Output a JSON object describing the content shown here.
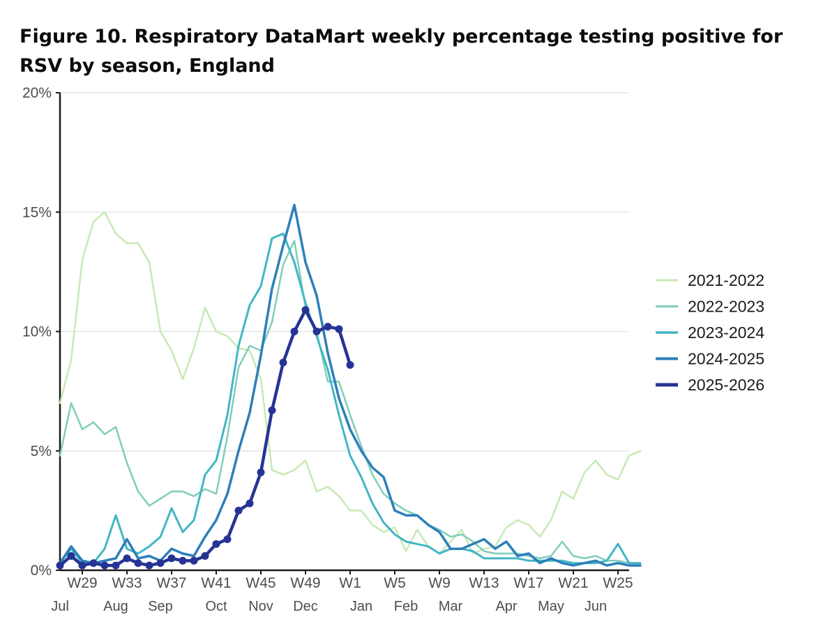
{
  "chart_data": {
    "type": "line",
    "title": "Figure 10. Respiratory DataMart weekly percentage testing positive for RSV by season, England",
    "xlabel": "",
    "ylabel": "",
    "ylim": [
      0,
      20
    ],
    "y_ticks": [
      0,
      5,
      10,
      15,
      20
    ],
    "y_tick_labels": [
      "0%",
      "5%",
      "10%",
      "15%",
      "20%"
    ],
    "x_range": [
      0,
      50
    ],
    "x_tick_labels": [
      "W29",
      "W33",
      "W37",
      "W41",
      "W45",
      "W49",
      "W1",
      "W5",
      "W9",
      "W13",
      "W17",
      "W21",
      "W25"
    ],
    "x_tick_positions": [
      2,
      6,
      10,
      14,
      18,
      22,
      26,
      30,
      34,
      38,
      42,
      46,
      50
    ],
    "months": [
      "Jul",
      "Aug",
      "Sep",
      "Oct",
      "Nov",
      "Dec",
      "Jan",
      "Feb",
      "Mar",
      "Apr",
      "May",
      "Jun"
    ],
    "month_positions": [
      0,
      5,
      9,
      14,
      18,
      22,
      27,
      31,
      35,
      40,
      44,
      48
    ],
    "grid": true,
    "legend_position": "right",
    "series": [
      {
        "name": "2021-2022",
        "color": "#c7e9b4",
        "width": 2.5,
        "markers": false,
        "values": [
          7.0,
          8.8,
          13.0,
          14.6,
          15.0,
          14.1,
          13.7,
          13.7,
          12.9,
          10.0,
          9.2,
          8.0,
          9.3,
          11.0,
          10.0,
          9.8,
          9.3,
          9.2,
          8.0,
          4.2,
          4.0,
          4.2,
          4.6,
          3.3,
          3.5,
          3.1,
          2.5,
          2.5,
          1.9,
          1.6,
          1.8,
          0.8,
          1.7,
          1.0,
          0.7,
          1.2,
          1.7,
          0.7,
          0.9,
          1.0,
          1.8,
          2.1,
          1.9,
          1.4,
          2.1,
          3.3,
          3.0,
          4.1,
          4.6,
          4.0,
          3.8,
          4.8,
          5.0
        ]
      },
      {
        "name": "2022-2023",
        "color": "#7fcdbb",
        "width": 2.5,
        "markers": false,
        "values": [
          4.8,
          7.0,
          5.9,
          6.2,
          5.7,
          6.0,
          4.5,
          3.3,
          2.7,
          3.0,
          3.3,
          3.3,
          3.1,
          3.4,
          3.2,
          5.6,
          8.5,
          9.4,
          9.2,
          10.4,
          12.8,
          13.8,
          11.0,
          10.0,
          7.9,
          7.9,
          6.5,
          5.2,
          4.0,
          3.2,
          2.8,
          2.5,
          2.3,
          1.9,
          1.7,
          1.4,
          1.5,
          1.2,
          0.8,
          0.7,
          0.7,
          0.7,
          0.6,
          0.5,
          0.6,
          1.2,
          0.6,
          0.5,
          0.6,
          0.4,
          0.4,
          0.3,
          0.3
        ]
      },
      {
        "name": "2023-2024",
        "color": "#41b6c4",
        "width": 3,
        "markers": false,
        "values": [
          0.3,
          0.9,
          0.3,
          0.3,
          0.9,
          2.3,
          0.9,
          0.7,
          1.0,
          1.4,
          2.6,
          1.6,
          2.1,
          4.0,
          4.6,
          6.5,
          9.4,
          11.1,
          11.9,
          13.9,
          14.1,
          12.9,
          11.2,
          9.8,
          8.4,
          6.5,
          4.8,
          3.9,
          2.8,
          2.0,
          1.5,
          1.2,
          1.1,
          1.0,
          0.7,
          0.9,
          0.9,
          0.8,
          0.5,
          0.5,
          0.5,
          0.5,
          0.4,
          0.4,
          0.4,
          0.4,
          0.3,
          0.3,
          0.3,
          0.4,
          1.1,
          0.3,
          0.3
        ]
      },
      {
        "name": "2024-2025",
        "color": "#2c7fb8",
        "width": 3.5,
        "markers": false,
        "values": [
          0.3,
          1.0,
          0.4,
          0.3,
          0.4,
          0.5,
          1.3,
          0.5,
          0.6,
          0.4,
          0.9,
          0.7,
          0.6,
          1.4,
          2.1,
          3.2,
          5.0,
          6.6,
          9.0,
          11.8,
          13.6,
          15.3,
          12.9,
          11.5,
          9.1,
          7.2,
          5.9,
          5.0,
          4.3,
          3.9,
          2.5,
          2.3,
          2.3,
          1.9,
          1.6,
          0.9,
          0.9,
          1.1,
          1.3,
          0.9,
          1.2,
          0.6,
          0.7,
          0.3,
          0.5,
          0.3,
          0.2,
          0.3,
          0.4,
          0.2,
          0.3,
          0.2,
          0.2
        ]
      },
      {
        "name": "2025-2026",
        "color": "#253494",
        "width": 4.5,
        "markers": true,
        "values": [
          0.2,
          0.6,
          0.2,
          0.3,
          0.2,
          0.2,
          0.5,
          0.3,
          0.2,
          0.3,
          0.5,
          0.4,
          0.4,
          0.6,
          1.1,
          1.3,
          2.5,
          2.8,
          4.1,
          6.7,
          8.7,
          10.0,
          10.9,
          10.0,
          10.2,
          10.1,
          8.6
        ]
      }
    ]
  }
}
